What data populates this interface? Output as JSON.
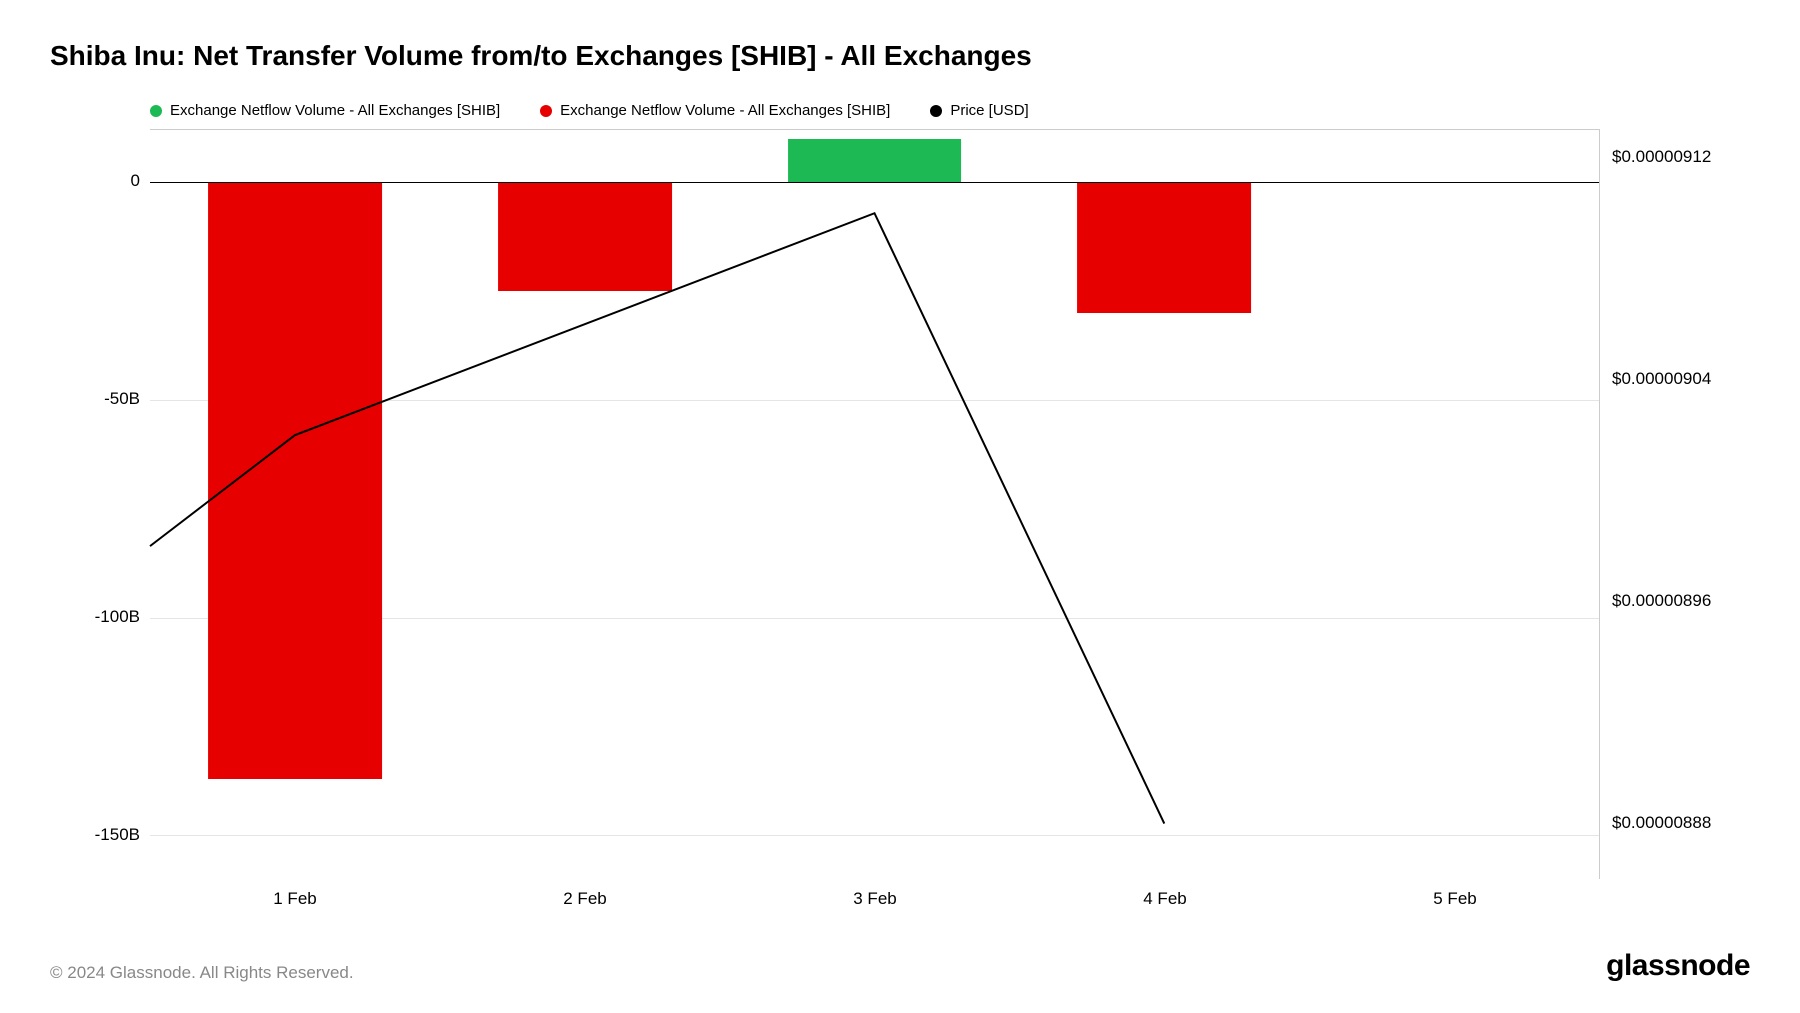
{
  "title": "Shiba Inu: Net Transfer Volume from/to Exchanges [SHIB] - All Exchanges",
  "legend": [
    {
      "label": "Exchange Netflow Volume - All Exchanges [SHIB]",
      "color": "#1db954"
    },
    {
      "label": "Exchange Netflow Volume - All Exchanges [SHIB]",
      "color": "#e60000"
    },
    {
      "label": "Price [USD]",
      "color": "#000000"
    }
  ],
  "chart": {
    "type": "bar+line",
    "background_color": "#ffffff",
    "grid_color": "#e5e5e5",
    "zero_line_color": "#000000",
    "categories": [
      "1 Feb",
      "2 Feb",
      "3 Feb",
      "4 Feb",
      "5 Feb"
    ],
    "bars": {
      "values": [
        -137,
        -25,
        10,
        -30,
        null
      ],
      "colors": [
        "#e60000",
        "#e60000",
        "#1db954",
        "#e60000",
        null
      ],
      "bar_width_frac": 0.6
    },
    "y_left": {
      "min": -160,
      "max": 12,
      "ticks": [
        {
          "v": 0,
          "label": "0"
        },
        {
          "v": -50,
          "label": "-50B"
        },
        {
          "v": -100,
          "label": "-100B"
        },
        {
          "v": -150,
          "label": "-150B"
        }
      ],
      "gridlines": [
        -50,
        -100,
        -150
      ],
      "tick_fontsize": 17
    },
    "y_right": {
      "min": 8.86e-06,
      "max": 9.13e-06,
      "ticks": [
        {
          "v": 9.12e-06,
          "label": "$0.00000912"
        },
        {
          "v": 9.04e-06,
          "label": "$0.00000904"
        },
        {
          "v": 8.96e-06,
          "label": "$0.00000896"
        },
        {
          "v": 8.88e-06,
          "label": "$0.00000888"
        }
      ],
      "tick_fontsize": 17
    },
    "price_line": {
      "color": "#000000",
      "width": 2,
      "points": [
        {
          "x": 0.5,
          "y": 8.98e-06
        },
        {
          "x": 1.0,
          "y": 9.02e-06
        },
        {
          "x": 3.0,
          "y": 9.1e-06
        },
        {
          "x": 4.0,
          "y": 8.88e-06
        }
      ]
    },
    "x_domain_min": 0.5,
    "x_domain_max": 5.5
  },
  "footer": {
    "copyright": "© 2024 Glassnode. All Rights Reserved.",
    "brand": "glassnode"
  }
}
